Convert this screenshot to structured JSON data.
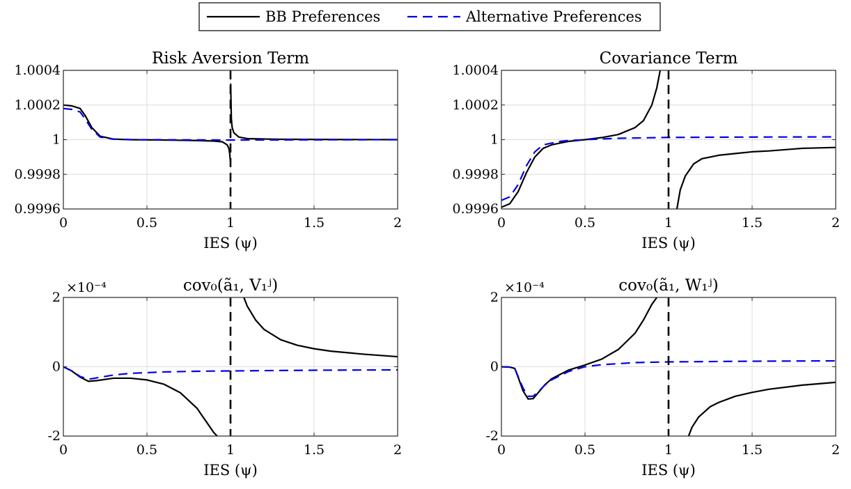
{
  "legend": {
    "series_black": "BB Preferences",
    "series_blue": "Alternative Preferences",
    "colors": {
      "black": "#000000",
      "blue": "#0000e6"
    }
  },
  "chart_data": [
    {
      "type": "line",
      "title": "Risk Aversion Term",
      "xlabel": "IES (ψ)",
      "xlim": [
        0,
        2
      ],
      "ylim": [
        0.9996,
        1.0004
      ],
      "xticks": [
        "0",
        "0.5",
        "1",
        "1.5",
        "2"
      ],
      "yticks": [
        "0.9996",
        "0.9998",
        "1",
        "1.0002",
        "1.0004"
      ],
      "y_multiplier": "",
      "vline_x": 1,
      "series": [
        {
          "name": "BB Preferences",
          "color": "#000000",
          "dash": "solid",
          "segments": [
            {
              "x": [
                0,
                0.05,
                0.1,
                0.13,
                0.17,
                0.22,
                0.3,
                0.4,
                0.6,
                0.8,
                0.9,
                0.95,
                0.98,
                0.99,
                0.995,
                0.999
              ],
              "y": [
                1.0002,
                1.000195,
                1.00018,
                1.00014,
                1.00007,
                1.00002,
                1.000003,
                1.0,
                0.999998,
                0.999995,
                0.999992,
                0.999988,
                0.99997,
                0.99995,
                0.99992,
                0.99988
              ]
            },
            {
              "x": [
                1.001,
                1.005,
                1.01,
                1.02,
                1.05,
                1.1,
                1.3,
                1.6,
                2.0
              ],
              "y": [
                1.00032,
                1.00012,
                1.00007,
                1.00004,
                1.000015,
                1.000006,
                1.000002,
                1.000001,
                1.0
              ]
            }
          ]
        },
        {
          "name": "Alternative Preferences",
          "color": "#0000e6",
          "dash": "dashed",
          "segments": [
            {
              "x": [
                0,
                0.05,
                0.1,
                0.13,
                0.17,
                0.22,
                0.3,
                0.4,
                0.7,
                1.0,
                1.5,
                2.0
              ],
              "y": [
                1.00018,
                1.000175,
                1.00016,
                1.00012,
                1.00006,
                1.000015,
                1.000003,
                1.0,
                0.999999,
                0.999998,
                0.999999,
                1.0
              ]
            }
          ]
        }
      ]
    },
    {
      "type": "line",
      "title": "Covariance Term",
      "xlabel": "IES (ψ)",
      "xlim": [
        0,
        2
      ],
      "ylim": [
        0.9996,
        1.0004
      ],
      "xticks": [
        "0",
        "0.5",
        "1",
        "1.5",
        "2"
      ],
      "yticks": [
        "0.9996",
        "0.9998",
        "1",
        "1.0002",
        "1.0004"
      ],
      "y_multiplier": "",
      "vline_x": 1,
      "series": [
        {
          "name": "BB Preferences",
          "color": "#000000",
          "dash": "solid",
          "segments": [
            {
              "x": [
                0,
                0.05,
                0.1,
                0.15,
                0.2,
                0.25,
                0.3,
                0.35,
                0.4,
                0.5,
                0.6,
                0.7,
                0.8,
                0.85,
                0.9,
                0.93,
                0.95
              ],
              "y": [
                0.99961,
                0.99963,
                0.9997,
                0.99981,
                0.9999,
                0.99995,
                0.99997,
                0.99998,
                0.99999,
                1.0,
                1.000012,
                1.00003,
                1.00007,
                1.00011,
                1.0002,
                1.0003,
                1.0004
              ]
            },
            {
              "x": [
                1.05,
                1.07,
                1.1,
                1.15,
                1.2,
                1.3,
                1.4,
                1.5,
                1.6,
                1.8,
                2.0
              ],
              "y": [
                0.9996,
                0.99971,
                0.99979,
                0.99986,
                0.99989,
                0.99991,
                0.99992,
                0.99993,
                0.999935,
                0.99995,
                0.999955
              ]
            }
          ]
        },
        {
          "name": "Alternative Preferences",
          "color": "#0000e6",
          "dash": "dashed",
          "segments": [
            {
              "x": [
                0,
                0.05,
                0.1,
                0.15,
                0.2,
                0.25,
                0.3,
                0.35,
                0.4,
                0.5,
                0.7,
                1.0,
                1.5,
                2.0
              ],
              "y": [
                0.99965,
                0.99967,
                0.99974,
                0.99985,
                0.99993,
                0.99997,
                0.99998,
                0.99999,
                0.999995,
                1.0,
                1.000008,
                1.000013,
                1.000015,
                1.000016
              ]
            }
          ]
        }
      ]
    },
    {
      "type": "line",
      "title": "cov₀(ã₁, V₁ʲ)",
      "xlabel": "IES (ψ)",
      "xlim": [
        0,
        2
      ],
      "ylim": [
        -2,
        2
      ],
      "xticks": [
        "0",
        "0.5",
        "1",
        "1.5",
        "2"
      ],
      "yticks": [
        "-2",
        "0",
        "2"
      ],
      "y_multiplier": "×10⁻⁴",
      "vline_x": 1,
      "series": [
        {
          "name": "BB Preferences",
          "color": "#000000",
          "dash": "solid",
          "segments": [
            {
              "x": [
                0,
                0.05,
                0.1,
                0.15,
                0.2,
                0.3,
                0.4,
                0.5,
                0.6,
                0.7,
                0.8,
                0.85,
                0.9,
                0.92
              ],
              "y": [
                0,
                -0.12,
                -0.3,
                -0.42,
                -0.4,
                -0.33,
                -0.33,
                -0.38,
                -0.5,
                -0.75,
                -1.2,
                -1.55,
                -1.9,
                -2.0
              ]
            },
            {
              "x": [
                1.08,
                1.1,
                1.15,
                1.2,
                1.3,
                1.4,
                1.5,
                1.6,
                1.8,
                2.0
              ],
              "y": [
                2.0,
                1.75,
                1.35,
                1.08,
                0.78,
                0.62,
                0.52,
                0.45,
                0.36,
                0.29
              ]
            }
          ]
        },
        {
          "name": "Alternative Preferences",
          "color": "#0000e6",
          "dash": "dashed",
          "segments": [
            {
              "x": [
                0,
                0.05,
                0.1,
                0.15,
                0.2,
                0.3,
                0.4,
                0.6,
                0.8,
                1.0,
                1.5,
                2.0
              ],
              "y": [
                0,
                -0.12,
                -0.28,
                -0.36,
                -0.32,
                -0.24,
                -0.19,
                -0.15,
                -0.13,
                -0.12,
                -0.1,
                -0.09
              ]
            }
          ]
        }
      ]
    },
    {
      "type": "line",
      "title": "cov₀(ã₁, W₁ʲ)",
      "xlabel": "IES (ψ)",
      "xlim": [
        0,
        2
      ],
      "ylim": [
        -2,
        2
      ],
      "xticks": [
        "0",
        "0.5",
        "1",
        "1.5",
        "2"
      ],
      "yticks": [
        "-2",
        "0",
        "2"
      ],
      "y_multiplier": "×10⁻⁴",
      "vline_x": 1,
      "series": [
        {
          "name": "BB Preferences",
          "color": "#000000",
          "dash": "solid",
          "segments": [
            {
              "x": [
                0,
                0.05,
                0.08,
                0.1,
                0.13,
                0.16,
                0.19,
                0.22,
                0.26,
                0.3,
                0.4,
                0.5,
                0.6,
                0.7,
                0.8,
                0.85,
                0.9,
                0.93
              ],
              "y": [
                0,
                -0.01,
                -0.05,
                -0.3,
                -0.7,
                -0.93,
                -0.92,
                -0.75,
                -0.52,
                -0.35,
                -0.1,
                0.05,
                0.22,
                0.5,
                0.97,
                1.35,
                1.8,
                2.0
              ]
            },
            {
              "x": [
                1.12,
                1.14,
                1.18,
                1.25,
                1.3,
                1.4,
                1.5,
                1.6,
                1.8,
                2.0
              ],
              "y": [
                -2.0,
                -1.75,
                -1.45,
                -1.15,
                -1.03,
                -0.85,
                -0.74,
                -0.65,
                -0.53,
                -0.45
              ]
            }
          ]
        },
        {
          "name": "Alternative Preferences",
          "color": "#0000e6",
          "dash": "dashed",
          "segments": [
            {
              "x": [
                0,
                0.05,
                0.08,
                0.1,
                0.13,
                0.16,
                0.19,
                0.22,
                0.26,
                0.3,
                0.4,
                0.5,
                0.6,
                0.8,
                1.0,
                1.5,
                2.0
              ],
              "y": [
                0,
                -0.01,
                -0.05,
                -0.28,
                -0.62,
                -0.85,
                -0.85,
                -0.72,
                -0.53,
                -0.38,
                -0.14,
                0.0,
                0.06,
                0.12,
                0.14,
                0.16,
                0.17
              ]
            }
          ]
        }
      ]
    }
  ]
}
